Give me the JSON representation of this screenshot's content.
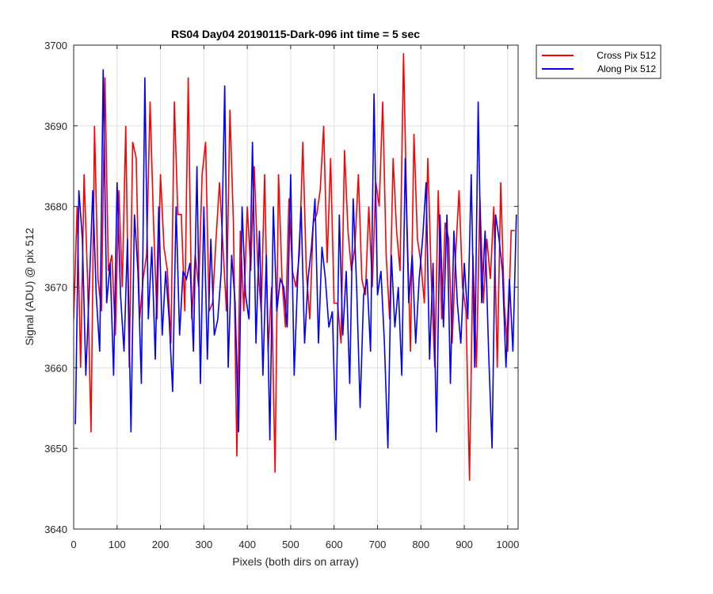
{
  "chart_data": {
    "type": "line",
    "title": "RS04 Day04 20190115-Dark-096 int time = 5 sec",
    "xlabel": "Pixels (both dirs on array)",
    "ylabel": "Signal (ADU) @ pix 512",
    "xlim": [
      0,
      1024
    ],
    "ylim": [
      3640,
      3700
    ],
    "xticks": [
      "0",
      "100",
      "200",
      "300",
      "400",
      "500",
      "600",
      "700",
      "800",
      "900",
      "1000"
    ],
    "yticks": [
      "3640",
      "3650",
      "3660",
      "3670",
      "3680",
      "3690",
      "3700"
    ],
    "grid": true,
    "legend_position": "outside-top-right",
    "series": [
      {
        "name": "Cross Pix 512",
        "color": "#ff0000",
        "x_start": 0,
        "x_step": 8,
        "values": [
          3666,
          3680,
          3660,
          3684,
          3671,
          3652,
          3690,
          3671,
          3667,
          3696,
          3672,
          3674,
          3664,
          3682,
          3670,
          3690,
          3660,
          3688,
          3686,
          3666,
          3671,
          3674,
          3693,
          3678,
          3666,
          3684,
          3675,
          3672,
          3663,
          3693,
          3679,
          3679,
          3667,
          3696,
          3666,
          3674,
          3670,
          3684,
          3688,
          3667,
          3668,
          3676,
          3683,
          3675,
          3667,
          3692,
          3678,
          3649,
          3677,
          3667,
          3680,
          3672,
          3685,
          3673,
          3667,
          3684,
          3662,
          3670,
          3647,
          3684,
          3671,
          3665,
          3681,
          3672,
          3670,
          3674,
          3688,
          3672,
          3666,
          3678,
          3679,
          3682,
          3690,
          3673,
          3686,
          3668,
          3668,
          3663,
          3687,
          3677,
          3672,
          3675,
          3684,
          3671,
          3669,
          3680,
          3670,
          3683,
          3680,
          3693,
          3674,
          3666,
          3686,
          3677,
          3672,
          3699,
          3678,
          3662,
          3689,
          3676,
          3673,
          3668,
          3686,
          3671,
          3660,
          3682,
          3666,
          3678,
          3676,
          3663,
          3674,
          3682,
          3670,
          3667,
          3646,
          3674,
          3660,
          3681,
          3668,
          3676,
          3671,
          3680,
          3660,
          3683,
          3668,
          3662,
          3677,
          3677
        ]
      },
      {
        "name": "Along Pix 512",
        "color": "#0000ff",
        "x_start": 4,
        "x_step": 8,
        "values": [
          3653,
          3682,
          3676,
          3659,
          3670,
          3682,
          3669,
          3662,
          3697,
          3668,
          3673,
          3659,
          3683,
          3669,
          3662,
          3676,
          3652,
          3679,
          3672,
          3658,
          3696,
          3666,
          3675,
          3661,
          3680,
          3664,
          3672,
          3666,
          3657,
          3680,
          3664,
          3672,
          3671,
          3673,
          3662,
          3685,
          3658,
          3680,
          3661,
          3676,
          3664,
          3666,
          3672,
          3695,
          3660,
          3674,
          3668,
          3652,
          3680,
          3669,
          3666,
          3688,
          3663,
          3677,
          3659,
          3674,
          3651,
          3680,
          3667,
          3671,
          3670,
          3665,
          3684,
          3659,
          3671,
          3680,
          3663,
          3671,
          3675,
          3681,
          3663,
          3675,
          3671,
          3665,
          3667,
          3651,
          3679,
          3664,
          3672,
          3658,
          3681,
          3670,
          3655,
          3669,
          3671,
          3662,
          3694,
          3669,
          3672,
          3663,
          3650,
          3674,
          3665,
          3670,
          3659,
          3686,
          3668,
          3674,
          3663,
          3671,
          3676,
          3683,
          3661,
          3673,
          3652,
          3679,
          3665,
          3679,
          3658,
          3677,
          3668,
          3663,
          3673,
          3666,
          3684,
          3660,
          3693,
          3668,
          3677,
          3662,
          3650,
          3679,
          3676,
          3672,
          3660,
          3671,
          3662,
          3679
        ]
      }
    ]
  }
}
